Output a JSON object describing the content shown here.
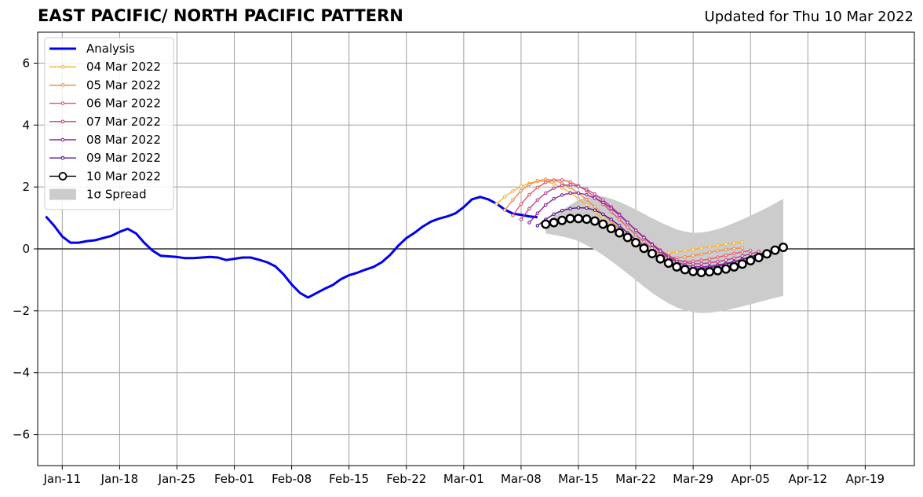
{
  "title": "EAST PACIFIC/ NORTH PACIFIC PATTERN",
  "updated": "Updated for Thu 10 Mar 2022",
  "chart_data": {
    "type": "line",
    "xlabel": "",
    "ylabel": "",
    "xlim": [
      "2022-01-08",
      "2022-04-25"
    ],
    "ylim": [
      -7,
      7
    ],
    "grid": true,
    "legend_position": "top-left",
    "x_ticks": [
      "2022-01-11",
      "2022-01-18",
      "2022-01-25",
      "2022-02-01",
      "2022-02-08",
      "2022-02-15",
      "2022-02-22",
      "2022-03-01",
      "2022-03-08",
      "2022-03-15",
      "2022-03-22",
      "2022-03-29",
      "2022-04-05",
      "2022-04-12",
      "2022-04-19"
    ],
    "x_tick_labels": [
      "Jan-11",
      "Jan-18",
      "Jan-25",
      "Feb-01",
      "Feb-08",
      "Feb-15",
      "Feb-22",
      "Mar-01",
      "Mar-08",
      "Mar-15",
      "Mar-22",
      "Mar-29",
      "Apr-05",
      "Apr-12",
      "Apr-19"
    ],
    "y_ticks": [
      -6,
      -4,
      -2,
      0,
      2,
      4,
      6
    ],
    "y_tick_labels": [
      "−6",
      "−4",
      "−2",
      "0",
      "2",
      "4",
      "6"
    ],
    "legend": [
      {
        "label": "Analysis",
        "color": "#0000ee",
        "style": "thick-line"
      },
      {
        "label": "04 Mar 2022",
        "color": "#f5b335",
        "style": "line-marker"
      },
      {
        "label": "05 Mar 2022",
        "color": "#ee8a4a",
        "style": "line-marker"
      },
      {
        "label": "06 Mar 2022",
        "color": "#dc5a6b",
        "style": "line-marker"
      },
      {
        "label": "07 Mar 2022",
        "color": "#b93e8a",
        "style": "line-marker"
      },
      {
        "label": "08 Mar 2022",
        "color": "#8e20a0",
        "style": "line-marker"
      },
      {
        "label": "09 Mar 2022",
        "color": "#561590",
        "style": "line-marker"
      },
      {
        "label": "10 Mar 2022",
        "color": "#000000",
        "style": "open-circle"
      },
      {
        "label": "1σ Spread",
        "color": "#cccccc",
        "style": "band"
      }
    ],
    "analysis": {
      "name": "Analysis",
      "color": "#0000ee",
      "x_start": "2022-01-09",
      "values": [
        1.05,
        0.75,
        0.4,
        0.2,
        0.2,
        0.25,
        0.28,
        0.35,
        0.42,
        0.55,
        0.65,
        0.5,
        0.2,
        -0.05,
        -0.22,
        -0.24,
        -0.26,
        -0.3,
        -0.3,
        -0.28,
        -0.26,
        -0.28,
        -0.36,
        -0.32,
        -0.28,
        -0.28,
        -0.35,
        -0.43,
        -0.56,
        -0.82,
        -1.15,
        -1.42,
        -1.57,
        -1.43,
        -1.29,
        -1.17,
        -0.98,
        -0.85,
        -0.77,
        -0.67,
        -0.58,
        -0.43,
        -0.2,
        0.1,
        0.35,
        0.52,
        0.72,
        0.88,
        0.98,
        1.05,
        1.15,
        1.35,
        1.6,
        1.68,
        1.6,
        1.46,
        1.27,
        1.14,
        1.1,
        1.05,
        1.02
      ]
    },
    "forecasts": [
      {
        "name": "04 Mar 2022",
        "color": "#f5b335",
        "x_start": "2022-03-05",
        "values": [
          1.45,
          1.68,
          1.87,
          2.02,
          2.12,
          2.18,
          2.18,
          2.1,
          1.97,
          1.82,
          1.62,
          1.42,
          1.19,
          0.96,
          0.73,
          0.49,
          0.28,
          0.1,
          -0.03,
          -0.1,
          -0.13,
          -0.13,
          -0.1,
          -0.06,
          -0.02,
          0.02,
          0.07,
          0.11,
          0.15,
          0.19,
          0.22
        ]
      },
      {
        "name": "05 Mar 2022",
        "color": "#ee8a4a",
        "x_start": "2022-03-06",
        "values": [
          1.25,
          1.58,
          1.88,
          2.08,
          2.2,
          2.25,
          2.22,
          2.12,
          1.98,
          1.8,
          1.59,
          1.36,
          1.12,
          0.88,
          0.64,
          0.41,
          0.2,
          0.02,
          -0.13,
          -0.22,
          -0.27,
          -0.28,
          -0.26,
          -0.22,
          -0.17,
          -0.11,
          -0.06,
          -0.02,
          0.01,
          0.03
        ]
      },
      {
        "name": "06 Mar 2022",
        "color": "#dc5a6b",
        "x_start": "2022-03-07",
        "values": [
          1.08,
          1.45,
          1.75,
          1.98,
          2.15,
          2.22,
          2.23,
          2.16,
          2.04,
          1.88,
          1.67,
          1.45,
          1.2,
          0.95,
          0.7,
          0.46,
          0.23,
          0.02,
          -0.16,
          -0.29,
          -0.37,
          -0.41,
          -0.4,
          -0.37,
          -0.33,
          -0.27,
          -0.21,
          -0.15,
          -0.1,
          -0.05
        ]
      },
      {
        "name": "07 Mar 2022",
        "color": "#b93e8a",
        "x_start": "2022-03-08",
        "values": [
          0.95,
          1.3,
          1.58,
          1.8,
          1.96,
          2.05,
          2.07,
          2.02,
          1.92,
          1.77,
          1.58,
          1.36,
          1.12,
          0.86,
          0.61,
          0.38,
          0.16,
          -0.04,
          -0.22,
          -0.35,
          -0.44,
          -0.48,
          -0.48,
          -0.45,
          -0.41,
          -0.36,
          -0.3,
          -0.23,
          -0.16,
          -0.09
        ]
      },
      {
        "name": "08 Mar 2022",
        "color": "#8e20a0",
        "x_start": "2022-03-09",
        "values": [
          0.85,
          1.15,
          1.42,
          1.62,
          1.74,
          1.8,
          1.8,
          1.75,
          1.64,
          1.5,
          1.31,
          1.09,
          0.85,
          0.6,
          0.36,
          0.13,
          -0.08,
          -0.27,
          -0.42,
          -0.52,
          -0.57,
          -0.58,
          -0.56,
          -0.52,
          -0.47,
          -0.41,
          -0.33,
          -0.25,
          -0.17,
          -0.09
        ]
      },
      {
        "name": "09 Mar 2022",
        "color": "#561590",
        "x_start": "2022-03-10",
        "values": [
          0.75,
          0.95,
          1.12,
          1.24,
          1.3,
          1.33,
          1.32,
          1.25,
          1.12,
          0.95,
          0.75,
          0.52,
          0.3,
          0.08,
          -0.14,
          -0.31,
          -0.45,
          -0.56,
          -0.62,
          -0.64,
          -0.63,
          -0.6,
          -0.56,
          -0.5,
          -0.43,
          -0.35,
          -0.26,
          -0.18,
          -0.1,
          -0.04
        ]
      },
      {
        "name": "10 Mar 2022",
        "color": "#000000",
        "x_start": "2022-03-11",
        "open_circles": true,
        "values": [
          0.8,
          0.85,
          0.92,
          0.98,
          0.98,
          0.96,
          0.9,
          0.8,
          0.66,
          0.52,
          0.37,
          0.2,
          0.02,
          -0.15,
          -0.32,
          -0.46,
          -0.58,
          -0.67,
          -0.73,
          -0.76,
          -0.74,
          -0.7,
          -0.65,
          -0.58,
          -0.49,
          -0.38,
          -0.28,
          -0.16,
          -0.04,
          0.05
        ]
      }
    ],
    "spread": {
      "name": "1σ Spread",
      "color": "#cccccc",
      "x_start": "2022-03-11",
      "upper": [
        0.85,
        1.05,
        1.25,
        1.42,
        1.58,
        1.68,
        1.72,
        1.7,
        1.62,
        1.52,
        1.4,
        1.27,
        1.13,
        0.99,
        0.86,
        0.74,
        0.63,
        0.56,
        0.52,
        0.53,
        0.57,
        0.64,
        0.73,
        0.84,
        0.95,
        1.07,
        1.2,
        1.33,
        1.47,
        1.62
      ],
      "lower": [
        0.5,
        0.45,
        0.4,
        0.34,
        0.25,
        0.12,
        -0.03,
        -0.2,
        -0.39,
        -0.59,
        -0.8,
        -1.01,
        -1.22,
        -1.42,
        -1.6,
        -1.76,
        -1.89,
        -1.99,
        -2.05,
        -2.07,
        -2.06,
        -2.03,
        -1.98,
        -1.92,
        -1.86,
        -1.79,
        -1.72,
        -1.65,
        -1.58,
        -1.52
      ]
    }
  }
}
